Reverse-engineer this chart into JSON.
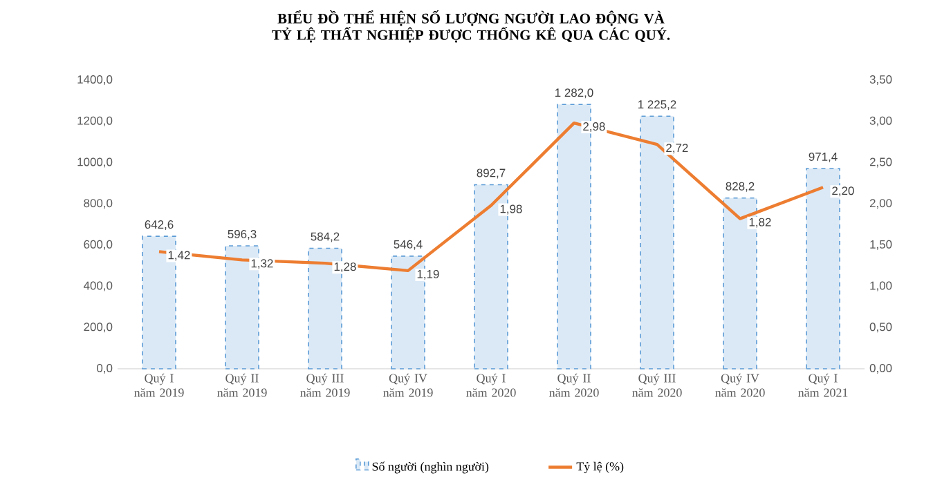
{
  "chart_data": {
    "type": "bar",
    "title": "BIỂU ĐỒ THỂ HIỆN SỐ LƯỢNG NGƯỜI LAO ĐỘNG VÀ TỶ LỆ THẤT NGHIỆP ĐƯỢC THỐNG KÊ QUA CÁC QUÝ.",
    "categories": [
      "Quý I năm 2019",
      "Quý II năm 2019",
      "Quý III năm 2019",
      "Quý IV năm 2019",
      "Quý I năm 2020",
      "Quý II năm 2020",
      "Quý III năm 2020",
      "Quý IV năm 2020",
      "Quý I năm 2021"
    ],
    "series": [
      {
        "name": "Số người (nghìn người)",
        "color": "#5b9bd5",
        "values": [
          642.6,
          596.3,
          584.2,
          546.4,
          892.7,
          1282.0,
          1225.2,
          828.2,
          971.4
        ],
        "value_labels": [
          "642,6",
          "596,3",
          "584,2",
          "546,4",
          "892,7",
          "1 282,0",
          "1 225,2",
          "828,2",
          "971,4"
        ]
      },
      {
        "name": "Tỷ lệ (%)",
        "type": "line",
        "axis": "y2",
        "color": "#ed7d31",
        "values": [
          1.42,
          1.32,
          1.28,
          1.19,
          1.98,
          2.98,
          2.72,
          1.82,
          2.2
        ],
        "value_labels": [
          "1,42",
          "1,32",
          "1,28",
          "1,19",
          "1,98",
          "2,98",
          "2,72",
          "1,82",
          "2,20"
        ]
      }
    ],
    "ylim": [
      0,
      1400
    ],
    "yticks": [
      {
        "value": 0,
        "label": "0,0"
      },
      {
        "value": 200,
        "label": "200,0"
      },
      {
        "value": 400,
        "label": "400,0"
      },
      {
        "value": 600,
        "label": "600,0"
      },
      {
        "value": 800,
        "label": "800,0"
      },
      {
        "value": 1000,
        "label": "1000,0"
      },
      {
        "value": 1200,
        "label": "1200,0"
      },
      {
        "value": 1400,
        "label": "1400,0"
      }
    ],
    "y2lim": [
      0,
      3.5
    ],
    "y2ticks": [
      {
        "value": 0,
        "label": "0,00"
      },
      {
        "value": 0.5,
        "label": "0,50"
      },
      {
        "value": 1,
        "label": "1,00"
      },
      {
        "value": 1.5,
        "label": "1,50"
      },
      {
        "value": 2,
        "label": "2,00"
      },
      {
        "value": 2.5,
        "label": "2,50"
      },
      {
        "value": 3,
        "label": "3,00"
      },
      {
        "value": 3.5,
        "label": "3,50"
      }
    ],
    "legend": "bottom",
    "grid": false
  }
}
